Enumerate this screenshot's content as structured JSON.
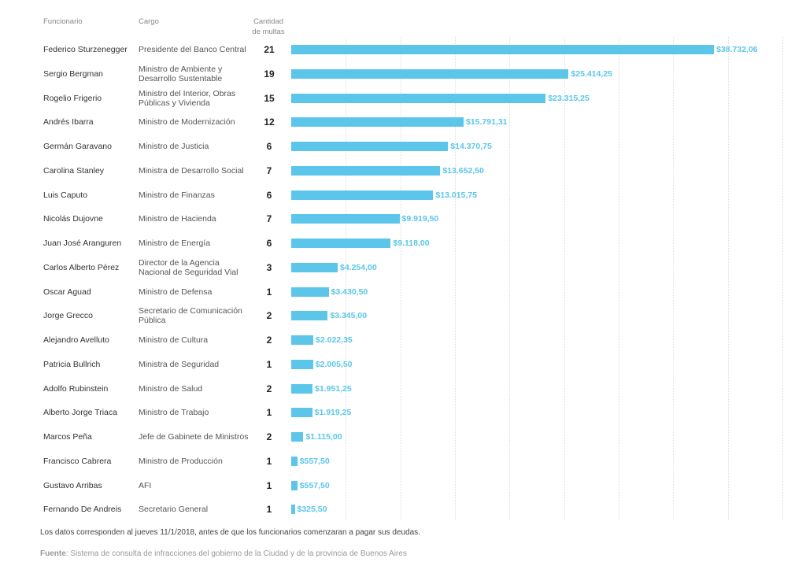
{
  "columns": {
    "name": "Funcionario",
    "cargo": "Cargo",
    "count_line1": "Cantidad",
    "count_line2": "de multas"
  },
  "colors": {
    "bar": "#5bc6ea",
    "value_label": "#5bc6ea",
    "grid": "#dcdcdc"
  },
  "chart_data": {
    "type": "bar",
    "orientation": "horizontal",
    "value_unit": "$",
    "xlim": [
      0,
      45000
    ],
    "grid": true,
    "rows": [
      {
        "funcionario": "Federico Sturzenegger",
        "cargo": "Presidente del Banco Central",
        "multas": "21",
        "value": 38732.06,
        "label": "$38.732,06"
      },
      {
        "funcionario": "Sergio Bergman",
        "cargo": "Ministro de Ambiente y Desarrollo Sustentable",
        "multas": "19",
        "value": 25414.25,
        "label": "$25.414,25"
      },
      {
        "funcionario": "Rogelio Frigerio",
        "cargo": "Ministro del Interior, Obras Públicas y Vivienda",
        "multas": "15",
        "value": 23315.25,
        "label": "$23.315,25"
      },
      {
        "funcionario": "Andrés Ibarra",
        "cargo": "Ministro de Modernización",
        "multas": "12",
        "value": 15791.31,
        "label": "$15.791,31"
      },
      {
        "funcionario": "Germán Garavano",
        "cargo": "Ministro de Justicia",
        "multas": "6",
        "value": 14370.75,
        "label": "$14.370,75"
      },
      {
        "funcionario": "Carolina Stanley",
        "cargo": "Ministra de Desarrollo Social",
        "multas": "7",
        "value": 13652.5,
        "label": "$13.652,50"
      },
      {
        "funcionario": "Luis Caputo",
        "cargo": "Ministro de Finanzas",
        "multas": "6",
        "value": 13015.75,
        "label": "$13.015,75"
      },
      {
        "funcionario": "Nicolás Dujovne",
        "cargo": "Ministro de Hacienda",
        "multas": "7",
        "value": 9919.5,
        "label": "$9.919,50"
      },
      {
        "funcionario": "Juan José Aranguren",
        "cargo": "Ministro de Energía",
        "multas": "6",
        "value": 9118.0,
        "label": "$9.118,00"
      },
      {
        "funcionario": "Carlos Alberto Pérez",
        "cargo": "Director de la Agencia Nacional de Seguridad Vial",
        "multas": "3",
        "value": 4254.0,
        "label": "$4.254,00"
      },
      {
        "funcionario": "Oscar Aguad",
        "cargo": "Ministro de Defensa",
        "multas": "1",
        "value": 3430.5,
        "label": "$3.430,50"
      },
      {
        "funcionario": "Jorge Grecco",
        "cargo": "Secretario de Comunicación Pública",
        "multas": "2",
        "value": 3345.0,
        "label": "$3.345,00"
      },
      {
        "funcionario": "Alejandro Avelluto",
        "cargo": "Ministro de Cultura",
        "multas": "2",
        "value": 2022.35,
        "label": "$2.022,35"
      },
      {
        "funcionario": "Patricia Bullrich",
        "cargo": "Ministra de Seguridad",
        "multas": "1",
        "value": 2005.5,
        "label": "$2.005,50"
      },
      {
        "funcionario": "Adolfo Rubinstein",
        "cargo": "Ministro de Salud",
        "multas": "2",
        "value": 1951.25,
        "label": "$1.951,25"
      },
      {
        "funcionario": "Alberto Jorge Triaca",
        "cargo": "Ministro de Trabajo",
        "multas": "1",
        "value": 1919.25,
        "label": "$1.919,25"
      },
      {
        "funcionario": "Marcos Peña",
        "cargo": "Jefe de Gabinete de Ministros",
        "multas": "2",
        "value": 1115.0,
        "label": "$1.115,00"
      },
      {
        "funcionario": "Francisco Cabrera",
        "cargo": "Ministro de Producción",
        "multas": "1",
        "value": 557.5,
        "label": "$557,50"
      },
      {
        "funcionario": "Gustavo Arribas",
        "cargo": "AFI",
        "multas": "1",
        "value": 557.5,
        "label": "$557,50"
      },
      {
        "funcionario": "Fernando De Andreis",
        "cargo": "Secretario General",
        "multas": "1",
        "value": 325.5,
        "label": "$325,50"
      }
    ]
  },
  "footer": {
    "note": "Los datos corresponden al jueves 11/1/2018, antes de que los funcionarios comenzaran a pagar sus deudas.",
    "source_label": "Fuente",
    "source_text": ": Sistema de consulta de infracciones del gobierno de la Ciudad y de la provincia de Buenos Aires"
  }
}
